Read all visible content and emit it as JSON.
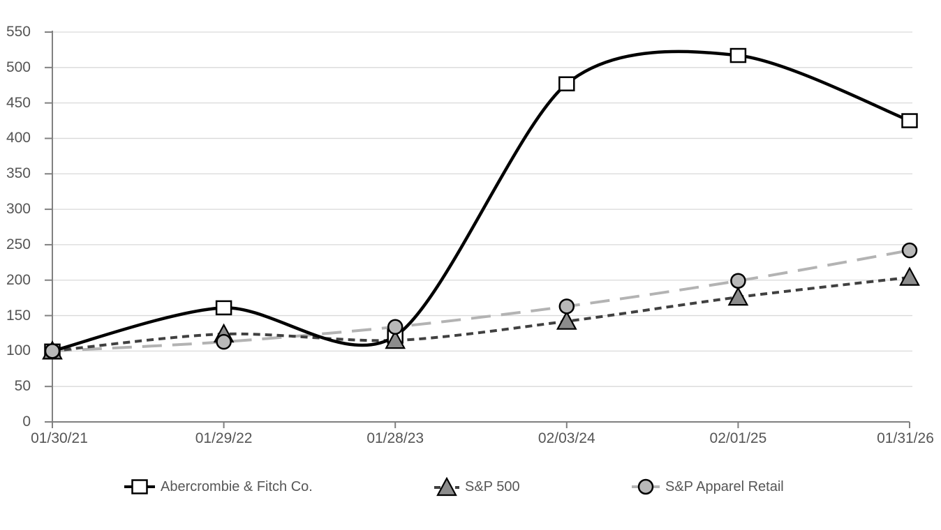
{
  "chart_data": {
    "type": "line",
    "title": "",
    "categories": [
      "01/30/21",
      "01/29/22",
      "01/28/23",
      "02/03/24",
      "02/01/25",
      "01/31/26"
    ],
    "series": [
      {
        "name": "Abercrombie & Fitch Co.",
        "values": [
          100,
          161,
          121,
          477,
          517,
          425
        ],
        "line_color": "#000000",
        "line_style": "solid",
        "marker": "square",
        "marker_fill": "#ffffff",
        "marker_border": "#000000"
      },
      {
        "name": "S&P 500",
        "values": [
          100,
          124,
          115,
          142,
          176,
          204
        ],
        "line_color": "#404040",
        "line_style": "short-dash",
        "marker": "triangle",
        "marker_fill": "#8c8c8c",
        "marker_border": "#000000"
      },
      {
        "name": "S&P Apparel Retail",
        "values": [
          100,
          113,
          134,
          163,
          199,
          242
        ],
        "line_color": "#b3b3b3",
        "line_style": "long-dash",
        "marker": "circle",
        "marker_fill": "#b8b8b8",
        "marker_border": "#000000"
      }
    ],
    "yaxis": {
      "min": 0,
      "max": 550,
      "step": 50,
      "tick_labels": [
        "0",
        "50",
        "100",
        "150",
        "200",
        "250",
        "300",
        "350",
        "400",
        "450",
        "500",
        "550"
      ]
    },
    "xaxis": {
      "tick_labels": [
        "01/30/21",
        "01/29/22",
        "01/28/23",
        "02/03/24",
        "02/01/25",
        "01/31/26"
      ]
    },
    "grid": true,
    "legend_position": "bottom",
    "colors": {
      "grid": "#d9d9d9",
      "axis": "#808080",
      "tick_text": "#555555",
      "legend_text": "#565656"
    }
  }
}
